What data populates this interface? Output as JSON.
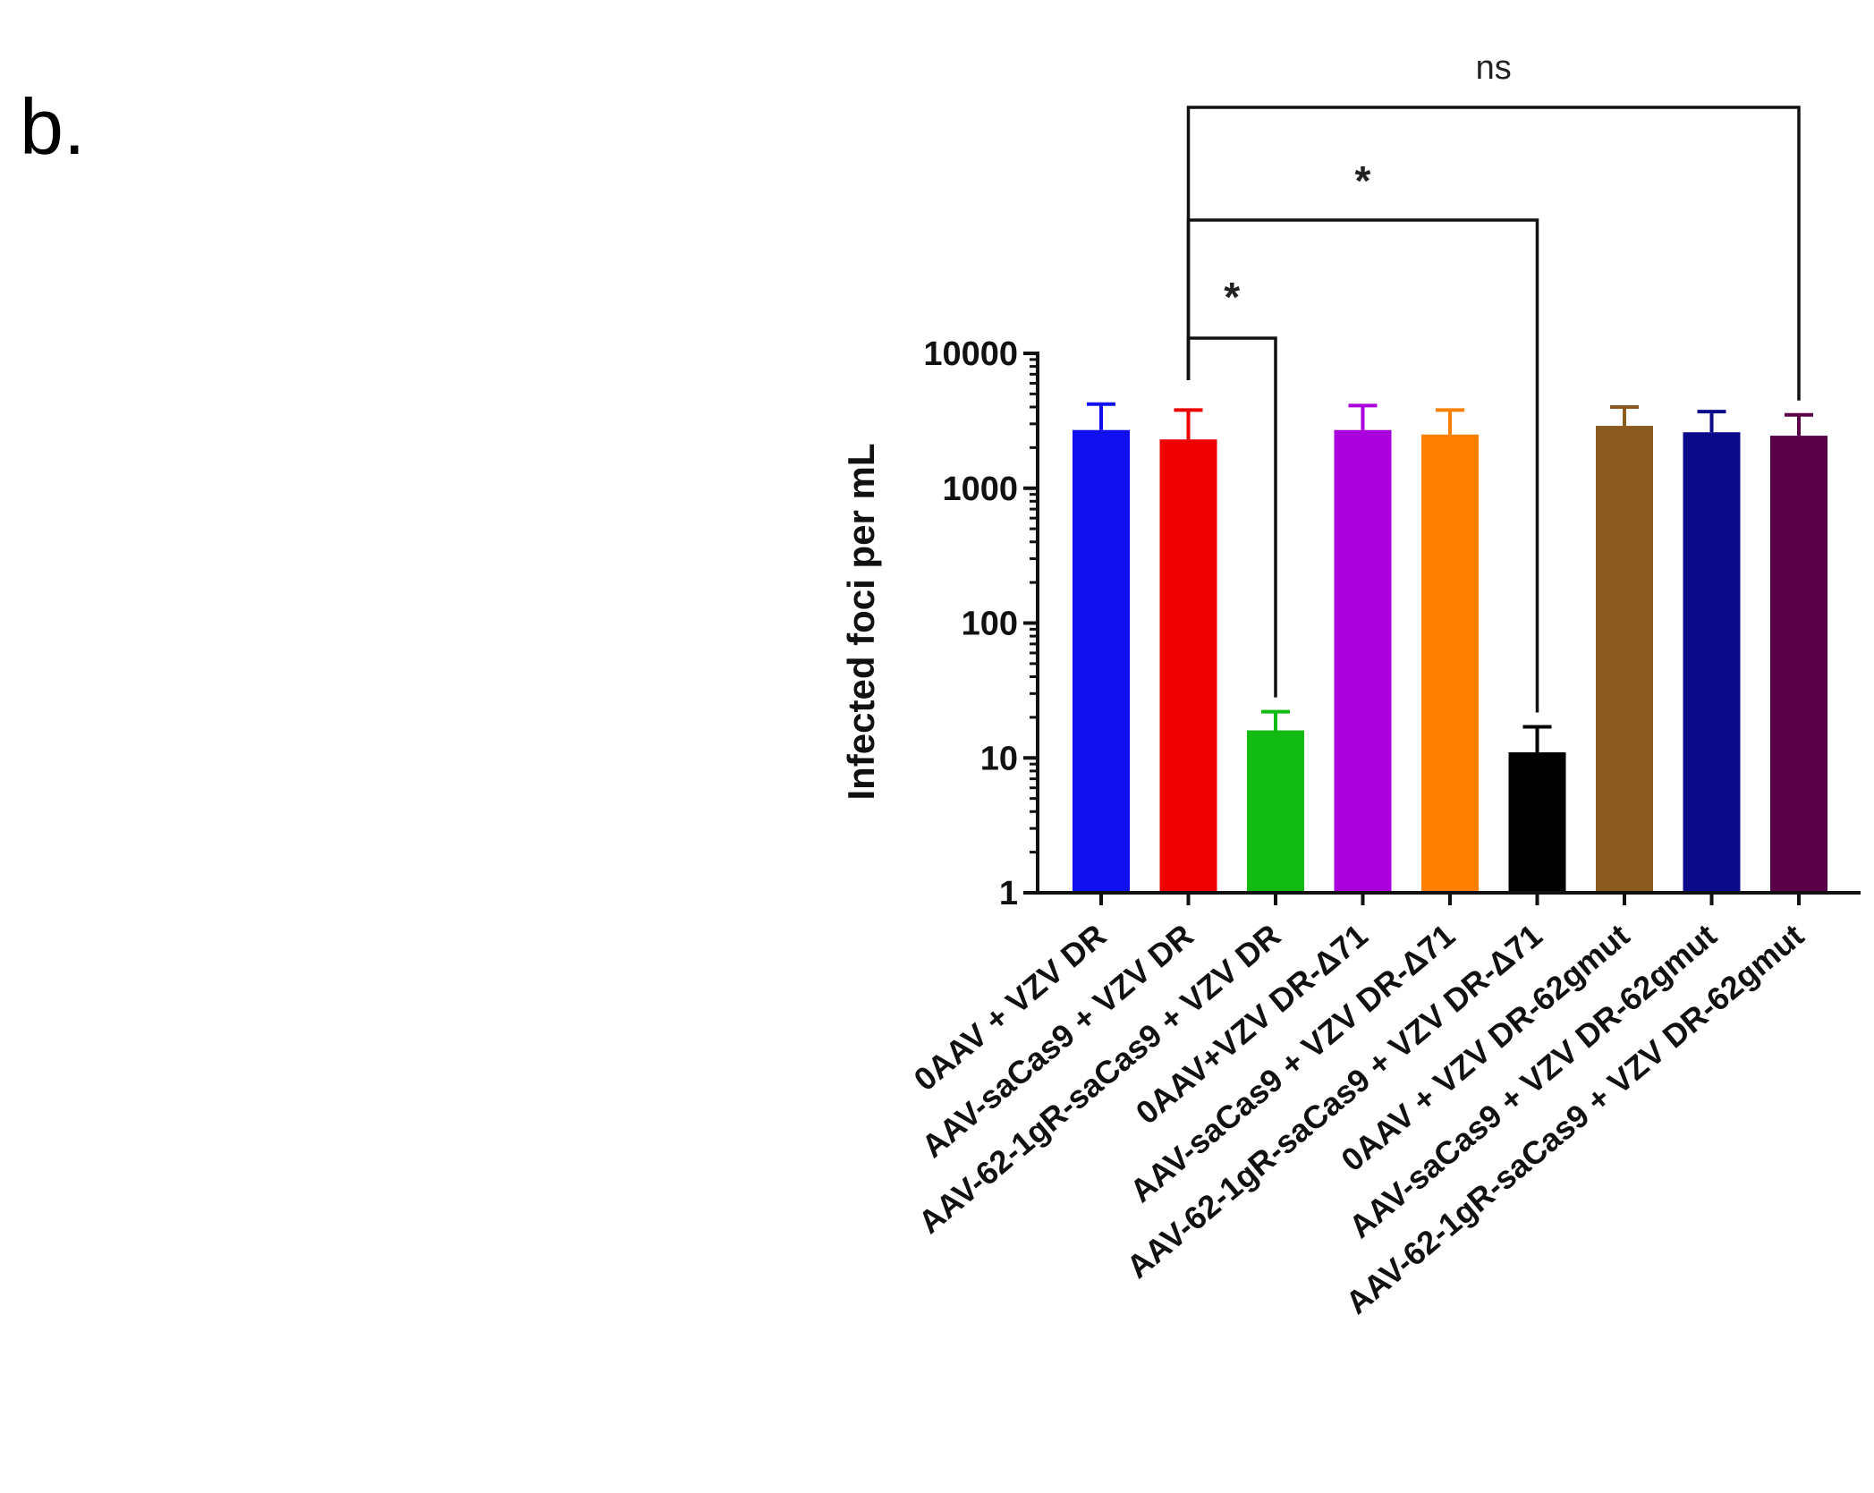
{
  "panel_label": "b.",
  "chart_data": {
    "type": "bar",
    "scale": "log",
    "ylabel": "Infected foci per mL",
    "ylim": [
      1,
      10000
    ],
    "yticks": [
      "1",
      "10",
      "100",
      "1000",
      "10000"
    ],
    "categories": [
      "0AAV + VZV DR",
      "AAV-saCas9  + VZV DR",
      "AAV-62-1gR-saCas9 + VZV DR",
      "0AAV+VZV DR-Δ71",
      "AAV-saCas9 + VZV DR-Δ71",
      "AAV-62-1gR-saCas9 + VZV DR-Δ71",
      "0AAV + VZV DR-62gmut",
      "AAV-saCas9 + VZV DR-62gmut",
      "AAV-62-1gR-saCas9 + VZV DR-62gmut"
    ],
    "values": [
      2700,
      2300,
      16,
      2700,
      2500,
      11,
      2900,
      2600,
      2450
    ],
    "errors_upper": [
      4200,
      3800,
      22,
      4100,
      3800,
      17,
      4000,
      3700,
      3500
    ],
    "colors": [
      "#1010ee",
      "#ee0000",
      "#11bb11",
      "#aa00dd",
      "#ff8000",
      "#000000",
      "#8b5a1e",
      "#0a0a8a",
      "#5a0048"
    ],
    "comparisons": [
      {
        "from": 1,
        "to": 2,
        "label": "*"
      },
      {
        "from": 1,
        "to": 5,
        "label": "*"
      },
      {
        "from": 1,
        "to": 8,
        "label": "ns"
      }
    ]
  }
}
